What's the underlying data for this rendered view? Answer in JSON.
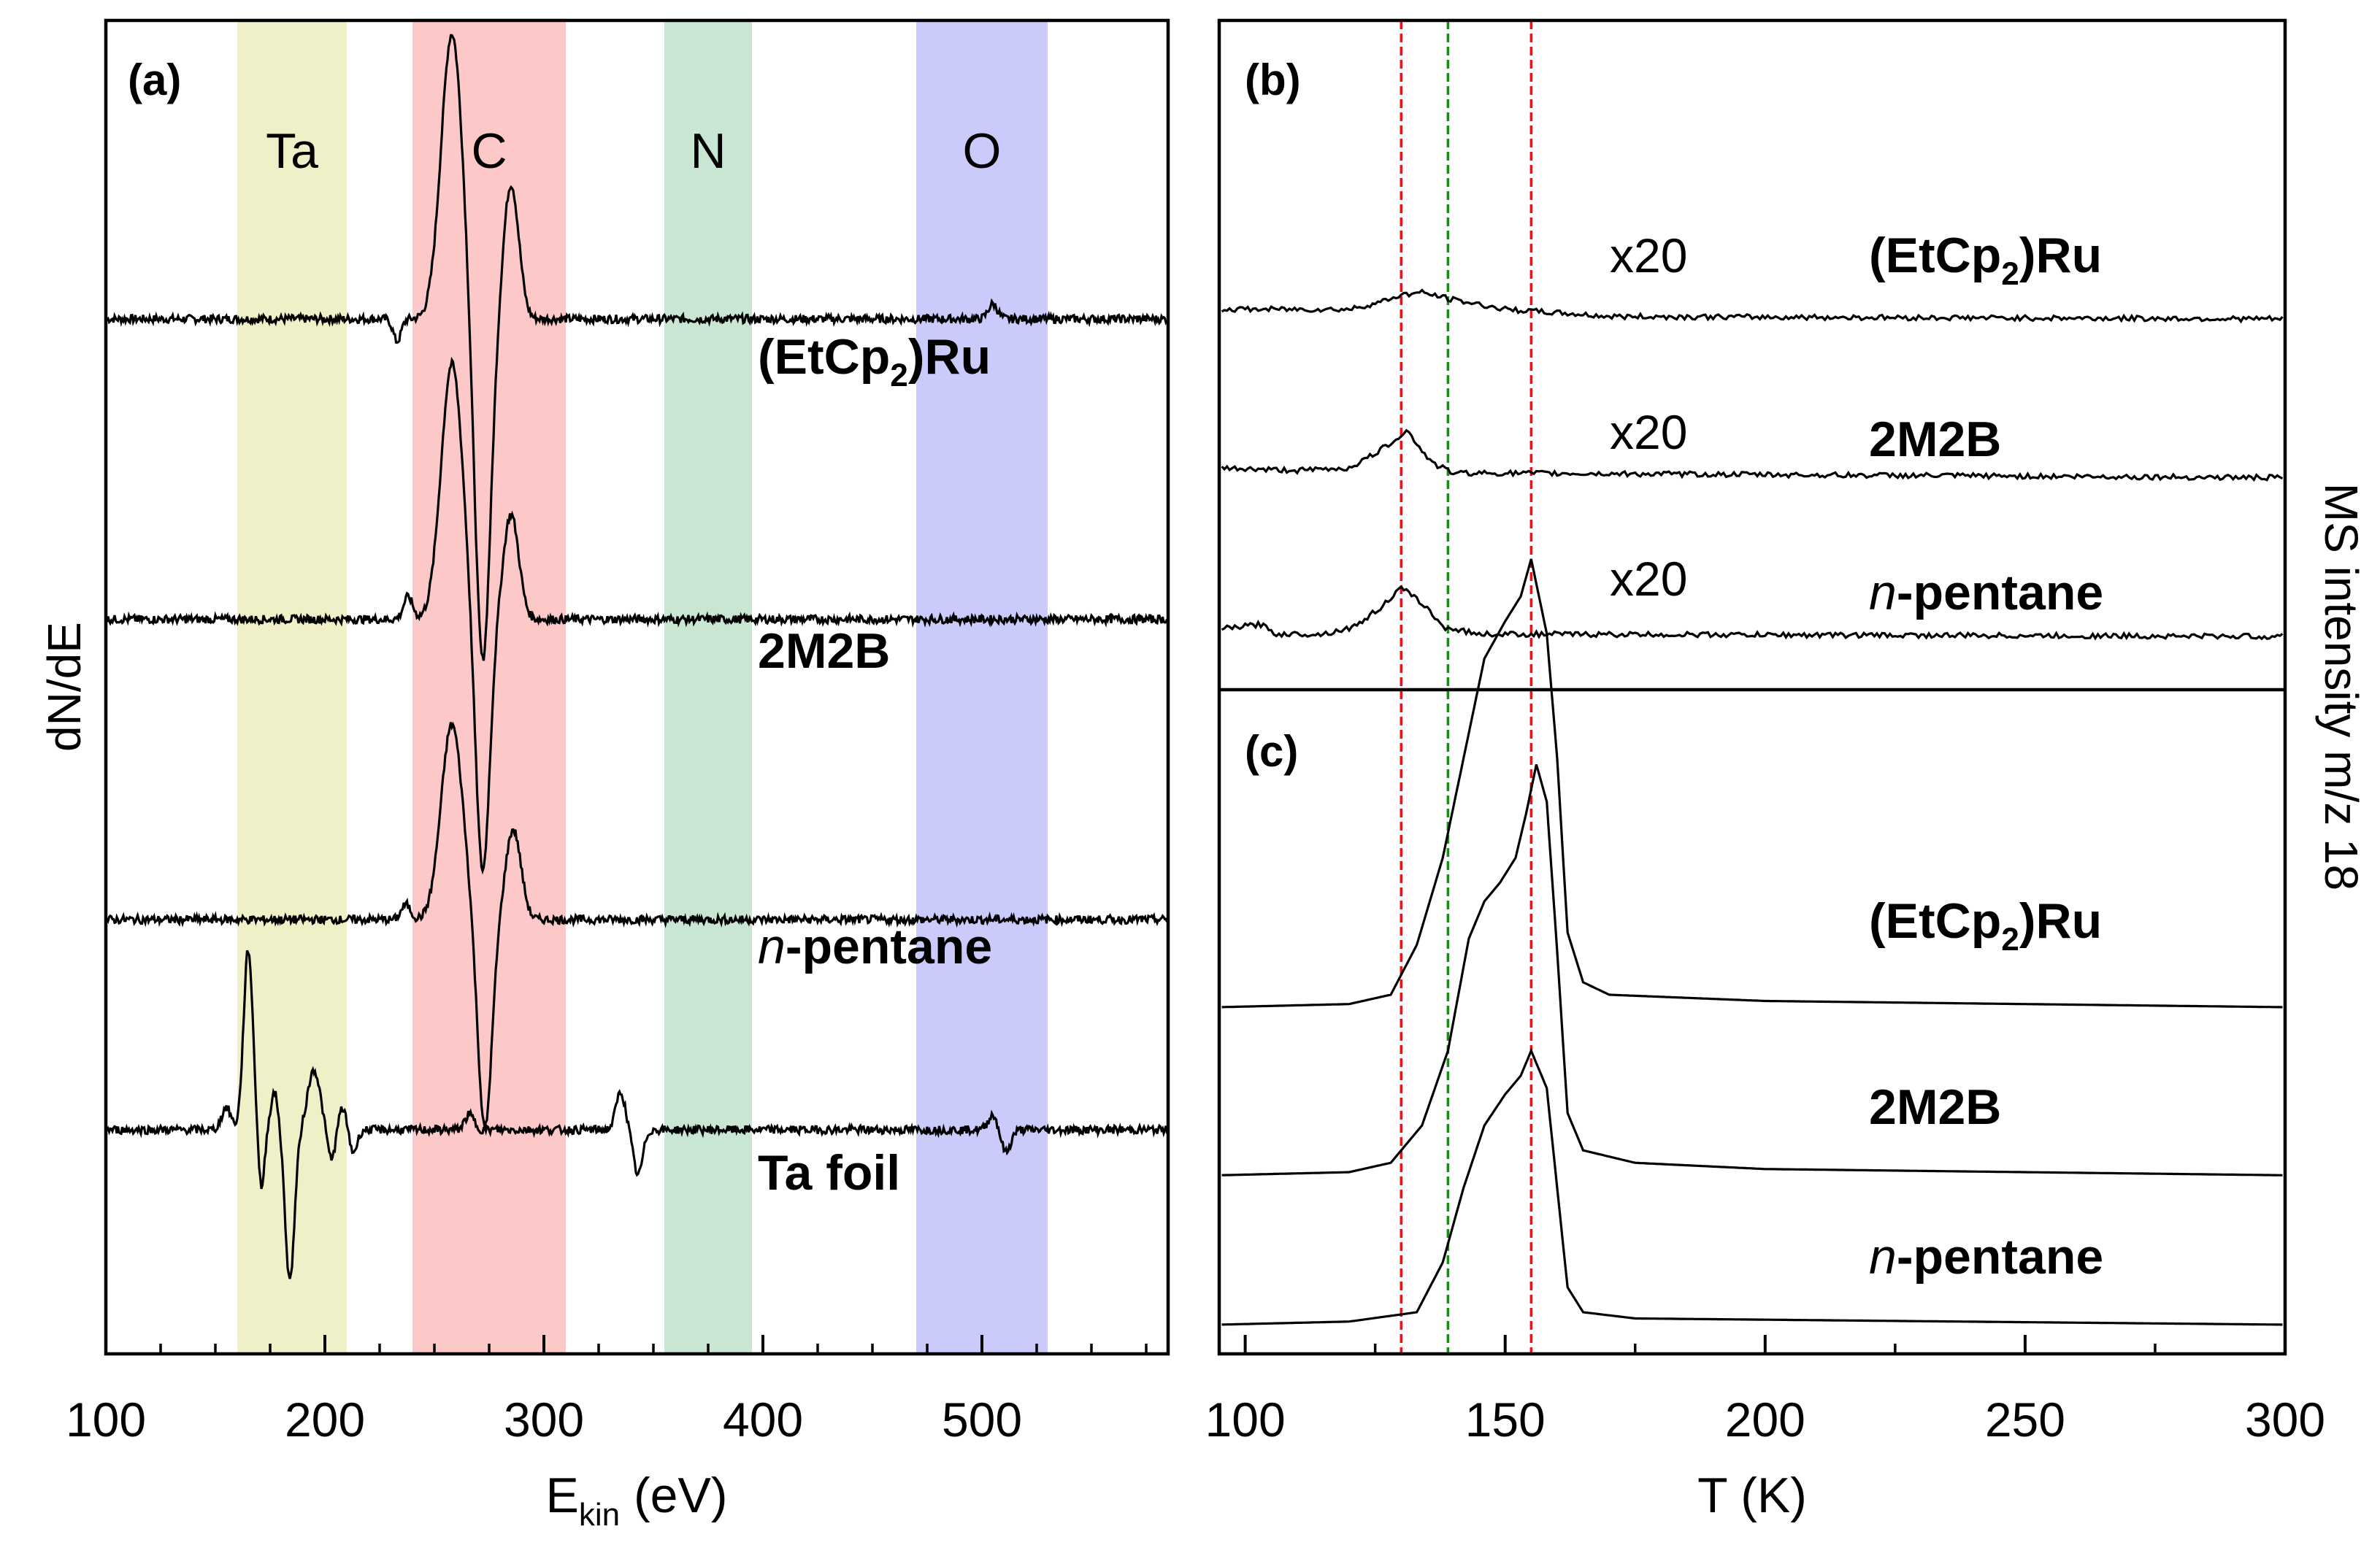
{
  "chart_data": [
    {
      "panel": "(a)",
      "type": "line",
      "title": "(a)",
      "xlabel_main": "E",
      "xlabel_sub": "kin",
      "xlabel_unit": " (eV)",
      "ylabel": "dN/dE",
      "xlim": [
        100,
        585
      ],
      "xticks": [
        100,
        200,
        300,
        400,
        500
      ],
      "minor_xticks": [
        125,
        150,
        175,
        225,
        250,
        275,
        325,
        350,
        375,
        425,
        450,
        475,
        525,
        550,
        575
      ],
      "yunits": "arbitrary (offset spectra)",
      "bands": [
        {
          "label": "Ta",
          "x0": 160,
          "x1": 210,
          "color": "#f0f0c8"
        },
        {
          "label": "C",
          "x0": 240,
          "x1": 310,
          "color": "#fdc8c8"
        },
        {
          "label": "N",
          "x0": 355,
          "x1": 395,
          "color": "#c8e6d2"
        },
        {
          "label": "O",
          "x0": 470,
          "x1": 530,
          "color": "#cbcbfb"
        }
      ],
      "series": [
        {
          "name": "(EtCp2)Ru",
          "label_main": "(EtCp",
          "label_sub": "2",
          "label_end": ")Ru",
          "label_style": "bold",
          "baseline": 30,
          "peaks": [
            [
              233,
              -1.5,
              2.5
            ],
            [
              258,
              19,
              7
            ],
            [
              272,
              -23,
              5
            ],
            [
              285,
              9,
              5
            ],
            [
              505,
              1,
              3
            ]
          ]
        },
        {
          "name": "2M2B",
          "label_main": "2M2B",
          "label_style": "bold",
          "baseline": 10,
          "peaks": [
            [
              238,
              1.5,
              3
            ],
            [
              258,
              17,
              7
            ],
            [
              272,
              -17,
              4.5
            ],
            [
              285,
              7,
              5
            ]
          ]
        },
        {
          "name": "n-pentane",
          "label_ital": "n",
          "label_main": "-pentane",
          "label_style": "bold",
          "baseline": -10,
          "peaks": [
            [
              237,
              1,
              3
            ],
            [
              258,
              13,
              7
            ],
            [
              273,
              -14,
              4.5
            ],
            [
              286,
              6,
              5
            ]
          ]
        },
        {
          "name": "Ta foil",
          "label_main": "Ta foil",
          "label_style": "bold",
          "baseline": -24,
          "peaks": [
            [
              155,
              1.5,
              3
            ],
            [
              165,
              12,
              3
            ],
            [
              171,
              -4,
              2
            ],
            [
              177,
              2.5,
              2.5
            ],
            [
              184,
              -10,
              3
            ],
            [
              195,
              4,
              4
            ],
            [
              203,
              -2,
              2.5
            ],
            [
              208,
              1.5,
              2.5
            ],
            [
              213,
              -1.5,
              2.5
            ],
            [
              266,
              1,
              3
            ],
            [
              335,
              2.5,
              3
            ],
            [
              343,
              -3,
              3
            ],
            [
              505,
              1,
              3
            ],
            [
              511,
              -1.5,
              3
            ]
          ]
        }
      ]
    },
    {
      "panel": "(b)",
      "type": "line",
      "title": "(b)",
      "xlim": [
        95,
        300
      ],
      "yunits": "arbitrary (offset traces)",
      "series": [
        {
          "name": "(EtCp2)Ru",
          "multiplier": "x20",
          "label_main": "(EtCp",
          "label_sub": "2",
          "label_end": ")Ru",
          "label_style": "bold",
          "baseline": 78,
          "points": [
            [
              95,
              2
            ],
            [
              110,
              2
            ],
            [
              120,
              2
            ],
            [
              126,
              3.5
            ],
            [
              130,
              5
            ],
            [
              134,
              5.5
            ],
            [
              140,
              4
            ],
            [
              150,
              2
            ],
            [
              170,
              0.5
            ],
            [
              300,
              0
            ]
          ]
        },
        {
          "name": "2M2B",
          "multiplier": "x20",
          "label_main": "2M2B",
          "label_style": "bold",
          "baseline": 45,
          "points": [
            [
              95,
              2
            ],
            [
              110,
              1.5
            ],
            [
              120,
              2
            ],
            [
              125,
              5
            ],
            [
              129,
              8
            ],
            [
              131,
              10
            ],
            [
              133,
              7
            ],
            [
              136,
              3
            ],
            [
              140,
              1
            ],
            [
              300,
              0
            ]
          ]
        },
        {
          "name": "n-pentane",
          "multiplier": "x20",
          "label_ital": "n",
          "label_main": "-pentane",
          "label_style": "bold",
          "baseline": 12,
          "points": [
            [
              95,
              1.5
            ],
            [
              103,
              2.5
            ],
            [
              106,
              0.5
            ],
            [
              115,
              0.5
            ],
            [
              121,
              2
            ],
            [
              126,
              6
            ],
            [
              130,
              10
            ],
            [
              134,
              7
            ],
            [
              138,
              2
            ],
            [
              145,
              0.5
            ],
            [
              300,
              0
            ]
          ]
        }
      ]
    },
    {
      "panel": "(c)",
      "type": "line",
      "title": "(c)",
      "xlabel": "T (K)",
      "ylabel_right": "MS intensity m/z 18",
      "xlim": [
        95,
        300
      ],
      "xticks": [
        100,
        150,
        200,
        250,
        300
      ],
      "minor_xticks": [
        125,
        175,
        225,
        275
      ],
      "yunits": "arbitrary (offset traces)",
      "series": [
        {
          "name": "(EtCp2)Ru",
          "label_main": "(EtCp",
          "label_sub": "2",
          "label_end": ")Ru",
          "label_style": "bold",
          "baseline": 55,
          "points": [
            [
              95,
              0
            ],
            [
              120,
              0.5
            ],
            [
              128,
              2
            ],
            [
              133,
              10
            ],
            [
              138,
              24
            ],
            [
              142,
              40
            ],
            [
              146,
              56
            ],
            [
              150,
              62
            ],
            [
              153,
              66
            ],
            [
              155,
              72
            ],
            [
              158,
              60
            ],
            [
              160,
              40
            ],
            [
              162,
              12
            ],
            [
              165,
              4
            ],
            [
              170,
              2
            ],
            [
              200,
              1
            ],
            [
              300,
              0
            ]
          ]
        },
        {
          "name": "2M2B",
          "label_main": "2M2B",
          "label_style": "bold",
          "baseline": 28,
          "points": [
            [
              95,
              0
            ],
            [
              120,
              0.5
            ],
            [
              128,
              2
            ],
            [
              134,
              8
            ],
            [
              139,
              20
            ],
            [
              143,
              38
            ],
            [
              146,
              44
            ],
            [
              149,
              47
            ],
            [
              152,
              51
            ],
            [
              154,
              58
            ],
            [
              156,
              66
            ],
            [
              158,
              60
            ],
            [
              160,
              36
            ],
            [
              162,
              10
            ],
            [
              165,
              4
            ],
            [
              175,
              2
            ],
            [
              200,
              1
            ],
            [
              300,
              0
            ]
          ]
        },
        {
          "name": "n-pentane",
          "label_ital": "n",
          "label_main": "-pentane",
          "label_style": "bold",
          "baseline": 4,
          "points": [
            [
              95,
              0
            ],
            [
              120,
              0.5
            ],
            [
              133,
              2
            ],
            [
              138,
              10
            ],
            [
              142,
              22
            ],
            [
              146,
              32
            ],
            [
              150,
              37
            ],
            [
              153,
              40
            ],
            [
              155,
              44
            ],
            [
              158,
              38
            ],
            [
              160,
              22
            ],
            [
              162,
              6
            ],
            [
              165,
              2
            ],
            [
              175,
              1
            ],
            [
              300,
              0
            ]
          ]
        }
      ]
    }
  ],
  "reference_lines": [
    {
      "T": 130,
      "color": "#e8131b"
    },
    {
      "T": 139,
      "color": "#1a8c1a"
    },
    {
      "T": 155,
      "color": "#e8131b"
    }
  ]
}
